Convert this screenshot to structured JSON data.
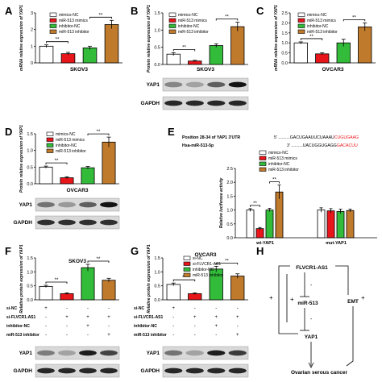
{
  "figure": {
    "legend_a": [
      "mimics-NC",
      "miR-513 mimics",
      "inhibitor-NC",
      "miR-513 inhibitor"
    ],
    "legend_b": [
      "mimics-NC",
      "miR-513 mimics",
      "inhibitor-NC",
      "miR-513 inhibitor"
    ],
    "legend_c": [
      "mimics-NC",
      "miR-513 mimics",
      "inhibitor-NC",
      "miR-513 inhibitor"
    ],
    "legend_d": [
      "mimics-NC",
      "miR-513 mimics",
      "inhibitor-NC",
      "miR-513 inhibitor"
    ],
    "legend_e": [
      "mimics-NC",
      "miR-513 mimics",
      "inhibitor-NC",
      "miR-513 inhibitor"
    ],
    "legend_f": [
      "si-NC",
      "si-FLVCR1-AS1",
      "inhibitor-NC",
      "miR-513 inhibitor"
    ],
    "colors": [
      "#ffffff",
      "#e8161b",
      "#33bb3a",
      "#c07a2c"
    ],
    "sig": "**",
    "wb_yap1": "YAP1",
    "wb_gapdh": "GAPDH",
    "plus": "+",
    "minus": "-",
    "row_labels_fg": [
      "si-NC",
      "si-FLVCR1-AS1",
      "inhibitor-NC",
      "miR-513 inhibitor"
    ],
    "row_signs_fg": [
      [
        "+",
        "-",
        "-",
        "-"
      ],
      [
        "-",
        "+",
        "+",
        "+"
      ],
      [
        "-",
        "-",
        "+",
        "-"
      ],
      [
        "-",
        "-",
        "-",
        "+"
      ]
    ],
    "e_seq_label_1": "Position 28-34 of YAP1 3'UTR",
    "e_seq_1_prefix": "5' ..........GACUGAAUUCUAAAU",
    "e_seq_1_highlight": "CUGUGAAG",
    "e_seq_label_2": "Hsa-miR-513-5p",
    "e_seq_2_prefix": "3' ..........UACUGGUGAGG",
    "e_seq_2_highlight": "GACACUU",
    "h_flvcr": "FLVCR1-AS1",
    "h_mir": "miR-513",
    "h_yap": "YAP1",
    "h_emt": "EMT",
    "h_cancer": "Ovarian serous cancer"
  },
  "chart_data": [
    {
      "panel": "A",
      "type": "bar",
      "title": "SKOV3",
      "ylabel": "mRNA relative expression of YAP1",
      "categories": [
        "mimics-NC",
        "miR-513 mimics",
        "inhibitor-NC",
        "miR-513 inhibitor"
      ],
      "values": [
        1.0,
        0.55,
        0.9,
        2.3
      ],
      "errors": [
        0.08,
        0.08,
        0.1,
        0.25
      ],
      "ylim": [
        0,
        3
      ],
      "yticks": [
        "0",
        "1",
        "2",
        "3"
      ]
    },
    {
      "panel": "B",
      "type": "bar",
      "title": "SKOV3",
      "ylabel": "Protein relative expression of YAP1",
      "categories": [
        "mimics-NC",
        "miR-513 mimics",
        "inhibitor-NC",
        "miR-513 inhibitor"
      ],
      "values": [
        0.3,
        0.1,
        0.55,
        1.1
      ],
      "errors": [
        0.04,
        0.02,
        0.05,
        0.13
      ],
      "ylim": [
        0,
        1.5
      ],
      "yticks": [
        "0.0",
        "0.5",
        "1.0",
        "1.5"
      ]
    },
    {
      "panel": "C",
      "type": "bar",
      "title": "OVCAR3",
      "ylabel": "mRNA relative expression of YAP1",
      "categories": [
        "mimics-NC",
        "miR-513 mimics",
        "inhibitor-NC",
        "miR-513 inhibitor"
      ],
      "values": [
        1.0,
        0.45,
        1.0,
        1.8
      ],
      "errors": [
        0.05,
        0.05,
        0.18,
        0.2
      ],
      "ylim": [
        0,
        2.5
      ],
      "yticks": [
        "0.0",
        "0.5",
        "1.0",
        "1.5",
        "2.0",
        "2.5"
      ]
    },
    {
      "panel": "D",
      "type": "bar",
      "title": "OVCAR3",
      "ylabel": "Protein relative expression of YAP1",
      "categories": [
        "mimics-NC",
        "miR-513 mimics",
        "inhibitor-NC",
        "miR-513 inhibitor"
      ],
      "values": [
        0.5,
        0.18,
        0.48,
        1.25
      ],
      "errors": [
        0.03,
        0.03,
        0.04,
        0.15
      ],
      "ylim": [
        0,
        1.5
      ],
      "yticks": [
        "0.0",
        "0.5",
        "1.0",
        "1.5"
      ]
    },
    {
      "panel": "E",
      "type": "bar",
      "ylabel": "Relative luciferase activity",
      "groups": [
        "wt-YAP1",
        "mut-YAP1"
      ],
      "series": [
        {
          "name": "mimics-NC",
          "values": [
            1.0,
            1.0
          ],
          "errors": [
            0.05,
            0.08
          ]
        },
        {
          "name": "miR-513 mimics",
          "values": [
            0.33,
            0.97
          ],
          "errors": [
            0.04,
            0.08
          ]
        },
        {
          "name": "inhibitor-NC",
          "values": [
            1.0,
            0.95
          ],
          "errors": [
            0.06,
            0.08
          ]
        },
        {
          "name": "miR-513 inhibitor",
          "values": [
            1.65,
            0.98
          ],
          "errors": [
            0.25,
            0.05
          ]
        }
      ],
      "ylim": [
        0,
        2.5
      ],
      "yticks": [
        "0.0",
        "0.5",
        "1.0",
        "1.5",
        "2.0",
        "2.5"
      ]
    },
    {
      "panel": "F",
      "type": "bar",
      "title": "SKOV3",
      "ylabel": "Relative protein expression of YAP1",
      "categories": [
        "si-NC",
        "si-FLVCR1-AS1",
        "si-FLVCR1-AS1 + inhibitor-NC",
        "si-FLVCR1-AS1 + miR-513 inhibitor"
      ],
      "values": [
        0.48,
        0.22,
        1.15,
        0.7
      ],
      "errors": [
        0.04,
        0.03,
        0.12,
        0.07
      ],
      "ylim": [
        0,
        1.5
      ],
      "yticks": [
        "0.0",
        "0.5",
        "1.0",
        "1.5"
      ]
    },
    {
      "panel": "G",
      "type": "bar",
      "title": "OVCAR3",
      "ylabel": "Relative protein expression of YAP1",
      "categories": [
        "si-NC",
        "si-FLVCR1-AS1",
        "si-FLVCR1-AS1 + inhibitor-NC",
        "si-FLVCR1-AS1 + miR-513 inhibitor"
      ],
      "values": [
        0.55,
        0.22,
        1.1,
        0.85
      ],
      "errors": [
        0.05,
        0.03,
        0.1,
        0.08
      ],
      "ylim": [
        0,
        1.5
      ],
      "yticks": [
        "0.0",
        "0.5",
        "1.0",
        "1.5"
      ]
    }
  ]
}
